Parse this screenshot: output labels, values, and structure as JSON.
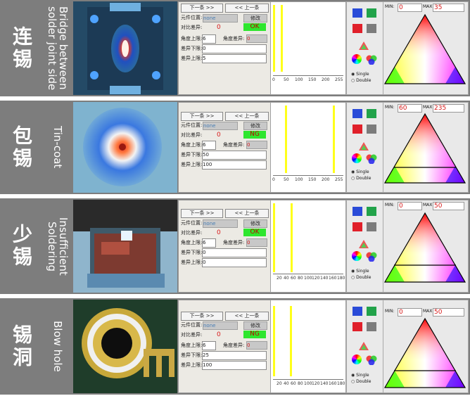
{
  "colors": {
    "ok_green": "#2ee62e",
    "hist_line": "#ffff1a",
    "row_bg": "#7d7d7d",
    "value_red": "#d81b1b"
  },
  "panel_labels": {
    "next": "下一条 >>",
    "prev": "<< 上一条",
    "position": "元件位置:",
    "diff": "对比差异:",
    "modify": "修改",
    "angle_upper": "角度上限:",
    "angle_diff": "角度差异:",
    "diff_lower": "差异下限:",
    "diff_upper": "差异上限:",
    "single": "Single",
    "double": "Double",
    "min": "MIN:",
    "max": "MAX:"
  },
  "rows": [
    {
      "zh": "连锡",
      "en": "Bridge between\nsolder joint side",
      "position": "none",
      "diff_value": "0",
      "result": "OK",
      "angle_upper": "6",
      "angle_diff": "0",
      "diff_lower": "0",
      "diff_upper": "5",
      "min": "0",
      "max": "35",
      "hist_ticks": [
        "0",
        "50",
        "100",
        "150",
        "200",
        "255"
      ]
    },
    {
      "zh": "包锡",
      "en": "Tin-coat",
      "position": "none",
      "diff_value": "0",
      "result": "NG",
      "angle_upper": "6",
      "angle_diff": "0",
      "diff_lower": "50",
      "diff_upper": "100",
      "min": "60",
      "max": "235",
      "hist_ticks": [
        "0",
        "50",
        "100",
        "150",
        "200",
        "255"
      ]
    },
    {
      "zh": "少锡",
      "en": "Insufficient\nSoldering",
      "position": "none",
      "diff_value": "0",
      "result": "OK",
      "angle_upper": "6",
      "angle_diff": "0",
      "diff_lower": "0",
      "diff_upper": "0",
      "min": "0",
      "max": "50",
      "hist_ticks": [
        "20",
        "40",
        "60",
        "80",
        "100",
        "120",
        "140",
        "160",
        "180"
      ]
    },
    {
      "zh": "锡洞",
      "en": "Blow hole",
      "position": "none",
      "diff_value": "0",
      "result": "NG",
      "angle_upper": "6",
      "angle_diff": "0",
      "diff_lower": "25",
      "diff_upper": "100",
      "min": "0",
      "max": "50",
      "hist_ticks": [
        "20",
        "40",
        "60",
        "80",
        "100",
        "120",
        "140",
        "160",
        "180"
      ]
    }
  ]
}
